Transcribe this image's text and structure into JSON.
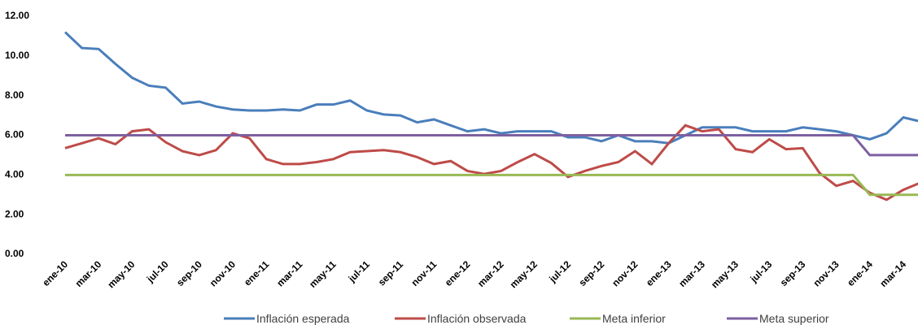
{
  "chart_data": {
    "type": "line",
    "categories": [
      "ene-10",
      null,
      "mar-10",
      null,
      "may-10",
      null,
      "jul-10",
      null,
      "sep-10",
      null,
      "nov-10",
      null,
      "ene-11",
      null,
      "mar-11",
      null,
      "may-11",
      null,
      "jul-11",
      null,
      "sep-11",
      null,
      "nov-11",
      null,
      "ene-12",
      null,
      "mar-12",
      null,
      "may-12",
      null,
      "jul-12",
      null,
      "sep-12",
      null,
      "nov-12",
      null,
      "ene-13",
      null,
      "mar-13",
      null,
      "may-13",
      null,
      "jul-13",
      null,
      "sep-13",
      null,
      "nov-13",
      null,
      "ene-14",
      null,
      "mar-14",
      null
    ],
    "series": [
      {
        "name": "Inflación esperada",
        "color": "#4a7ebb",
        "values": [
          11.2,
          10.4,
          10.35,
          9.6,
          8.9,
          8.5,
          8.4,
          7.6,
          7.7,
          7.45,
          7.3,
          7.25,
          7.25,
          7.3,
          7.25,
          7.55,
          7.55,
          7.75,
          7.25,
          7.05,
          7.0,
          6.65,
          6.8,
          6.5,
          6.2,
          6.3,
          6.1,
          6.2,
          6.2,
          6.2,
          5.9,
          5.9,
          5.7,
          6.0,
          5.7,
          5.7,
          5.6,
          6.0,
          6.4,
          6.4,
          6.4,
          6.2,
          6.2,
          6.2,
          6.4,
          6.3,
          6.2,
          6.0,
          5.8,
          6.1,
          6.9,
          6.7
        ]
      },
      {
        "name": "Inflación observada",
        "color": "#be4b48",
        "values": [
          5.35,
          5.6,
          5.85,
          5.55,
          6.2,
          6.3,
          5.65,
          5.2,
          5.0,
          5.25,
          6.1,
          5.85,
          4.8,
          4.55,
          4.55,
          4.65,
          4.8,
          5.15,
          5.2,
          5.25,
          5.15,
          4.9,
          4.55,
          4.7,
          4.2,
          4.05,
          4.2,
          4.65,
          5.05,
          4.6,
          3.9,
          4.2,
          4.45,
          4.65,
          5.2,
          4.55,
          5.6,
          6.5,
          6.2,
          6.3,
          5.3,
          5.15,
          5.8,
          5.3,
          5.35,
          4.1,
          3.45,
          3.7,
          3.1,
          2.75,
          3.25,
          3.6
        ]
      },
      {
        "name": "Meta inferior",
        "color": "#98b954",
        "values": [
          4,
          4,
          4,
          4,
          4,
          4,
          4,
          4,
          4,
          4,
          4,
          4,
          4,
          4,
          4,
          4,
          4,
          4,
          4,
          4,
          4,
          4,
          4,
          4,
          4,
          4,
          4,
          4,
          4,
          4,
          4,
          4,
          4,
          4,
          4,
          4,
          4,
          4,
          4,
          4,
          4,
          4,
          4,
          4,
          4,
          4,
          4,
          4,
          3,
          3,
          3,
          3
        ]
      },
      {
        "name": "Meta superior",
        "color": "#7d60a0",
        "values": [
          6,
          6,
          6,
          6,
          6,
          6,
          6,
          6,
          6,
          6,
          6,
          6,
          6,
          6,
          6,
          6,
          6,
          6,
          6,
          6,
          6,
          6,
          6,
          6,
          6,
          6,
          6,
          6,
          6,
          6,
          6,
          6,
          6,
          6,
          6,
          6,
          6,
          6,
          6,
          6,
          6,
          6,
          6,
          6,
          6,
          6,
          6,
          6,
          5,
          5,
          5,
          5
        ]
      }
    ],
    "ylim": [
      0,
      12
    ],
    "yticks": [
      {
        "value": 0,
        "label": "0.00"
      },
      {
        "value": 2,
        "label": "2.00"
      },
      {
        "value": 4,
        "label": "4.00"
      },
      {
        "value": 6,
        "label": "6.00"
      },
      {
        "value": 8,
        "label": "8.00"
      },
      {
        "value": 10,
        "label": "10.00"
      },
      {
        "value": 12,
        "label": "12.00"
      }
    ],
    "legend": "bottom"
  }
}
